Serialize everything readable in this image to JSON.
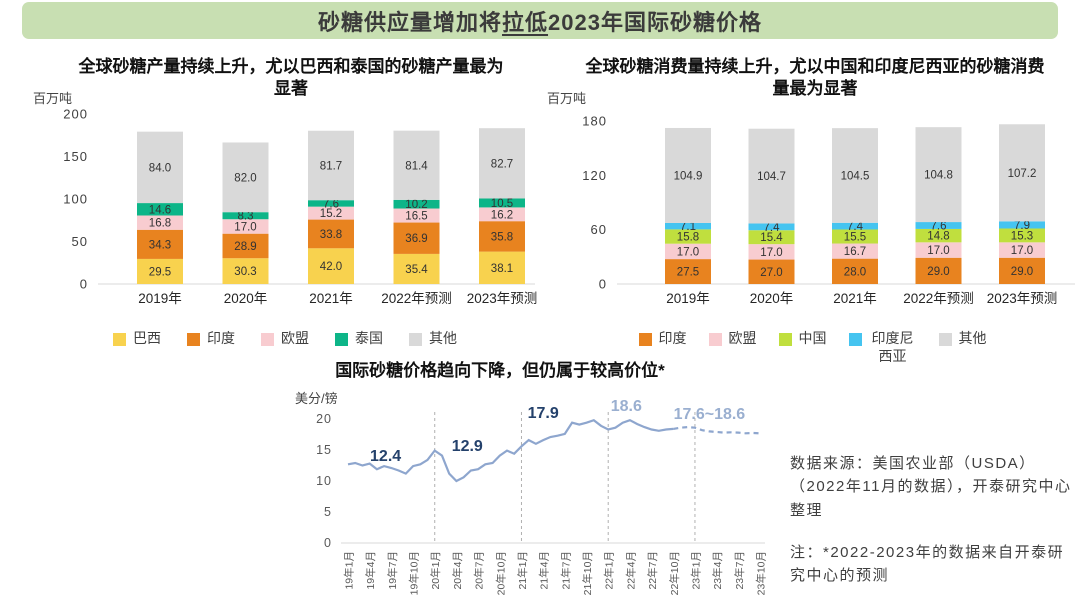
{
  "header": {
    "title_pre": "砂糖供应量增加将",
    "title_underline": "拉低",
    "title_post": "2023年国际砂糖价格",
    "bg_color": "#c8dfb2"
  },
  "source": {
    "line1": "数据来源：美国农业部（USDA）（2022年11月的数据），开泰研究中心整理",
    "line2": "注：*2022-2023年的数据来自开泰研究中心的预测"
  },
  "chart_data": [
    {
      "id": "production",
      "type": "bar",
      "stacked": true,
      "title": "全球砂糖产量持续上升，尤以巴西和泰国的砂糖产量最为显著",
      "ylabel": "百万吨",
      "categories": [
        "2019年",
        "2020年",
        "2021年",
        "2022年预测",
        "2023年预测"
      ],
      "series": [
        {
          "name": "巴西",
          "color": "#f8d24e",
          "values": [
            29.5,
            30.3,
            42.0,
            35.4,
            38.1
          ]
        },
        {
          "name": "印度",
          "color": "#e8831f",
          "values": [
            34.3,
            28.9,
            33.8,
            36.9,
            35.8
          ]
        },
        {
          "name": "欧盟",
          "color": "#f8ccd0",
          "values": [
            16.8,
            17.0,
            15.2,
            16.5,
            16.2
          ]
        },
        {
          "name": "泰国",
          "color": "#0db588",
          "values": [
            14.6,
            8.3,
            7.6,
            10.2,
            10.5
          ]
        },
        {
          "name": "其他",
          "color": "#d9d9d9",
          "values": [
            84.0,
            82.0,
            81.7,
            81.4,
            82.7
          ]
        }
      ],
      "yticks": [
        0,
        50,
        100,
        150,
        200
      ],
      "ylim": [
        0,
        200
      ],
      "legend_position": "bottom",
      "grid": false
    },
    {
      "id": "consumption",
      "type": "bar",
      "stacked": true,
      "title": "全球砂糖消费量持续上升，尤以中国和印度尼西亚的砂糖消费量最为显著",
      "ylabel": "百万吨",
      "categories": [
        "2019年",
        "2020年",
        "2021年",
        "2022年预测",
        "2023年预测"
      ],
      "series": [
        {
          "name": "印度",
          "color": "#e8831f",
          "values": [
            27.5,
            27.0,
            28.0,
            29.0,
            29.0
          ]
        },
        {
          "name": "欧盟",
          "color": "#f8ccd0",
          "values": [
            17.0,
            17.0,
            16.7,
            17.0,
            17.0
          ]
        },
        {
          "name": "中国",
          "color": "#c0df3e",
          "values": [
            15.8,
            15.4,
            15.5,
            14.8,
            15.3
          ]
        },
        {
          "name": "印度尼西亚",
          "color": "#45c4f0",
          "values": [
            7.1,
            7.4,
            7.4,
            7.6,
            7.9
          ]
        },
        {
          "name": "其他",
          "color": "#d9d9d9",
          "values": [
            104.9,
            104.7,
            104.5,
            104.8,
            107.2
          ]
        }
      ],
      "yticks": [
        0,
        60,
        120,
        180
      ],
      "ylim": [
        0,
        180
      ],
      "legend_position": "bottom",
      "grid": false
    },
    {
      "id": "price",
      "type": "line",
      "title": "国际砂糖价格趋向下降，但仍属于较高价位*",
      "ylabel": "美分/镑",
      "yticks": [
        0,
        5,
        10,
        15,
        20
      ],
      "ylim": [
        0,
        20
      ],
      "x_tick_labels": [
        "19年1月",
        "19年4月",
        "19年7月",
        "19年10月",
        "20年1月",
        "20年4月",
        "20年7月",
        "20年10月",
        "21年1月",
        "21年4月",
        "21年7月",
        "21年10月",
        "22年1月",
        "22年4月",
        "22年7月",
        "22年10月",
        "23年1月",
        "23年4月",
        "23年7月",
        "23年10月"
      ],
      "months_per_tick": 3,
      "values": [
        12.7,
        12.9,
        12.5,
        12.8,
        11.9,
        12.4,
        12.1,
        11.7,
        11.2,
        12.4,
        12.7,
        13.4,
        14.9,
        14.1,
        11.2,
        10.0,
        10.6,
        11.7,
        11.9,
        12.7,
        12.9,
        14.1,
        14.9,
        14.4,
        15.6,
        16.6,
        16.0,
        16.6,
        17.1,
        17.3,
        17.6,
        19.4,
        19.1,
        19.4,
        19.8,
        18.9,
        18.3,
        18.6,
        19.4,
        19.8,
        19.2,
        18.7,
        18.3,
        18.1,
        18.3,
        18.4,
        18.6,
        18.7,
        18.6,
        18.2,
        18.0,
        17.9,
        17.8,
        17.85,
        17.8,
        17.7,
        17.75,
        17.7
      ],
      "solid_until_index": 45,
      "forecast_dashed": true,
      "gridlines_at_month": [
        12,
        24,
        36,
        48
      ],
      "line_color": "#8ea6ce",
      "annotations": [
        {
          "text": "12.4",
          "month": 5.2,
          "value": 13.2,
          "style": "dark"
        },
        {
          "text": "12.9",
          "month": 16.5,
          "value": 14.8,
          "style": "dark"
        },
        {
          "text": "17.9",
          "month": 27.0,
          "value": 20.2,
          "style": "dark"
        },
        {
          "text": "18.6",
          "month": 38.5,
          "value": 21.3,
          "style": "light"
        },
        {
          "text": "17.6~18.6",
          "month": 50.0,
          "value": 20.0,
          "style": "light"
        }
      ],
      "annotation_colors": {
        "dark": "#24416b",
        "light": "#9aafd0"
      },
      "grid": "vertical-dashed",
      "legend_position": "none"
    }
  ]
}
